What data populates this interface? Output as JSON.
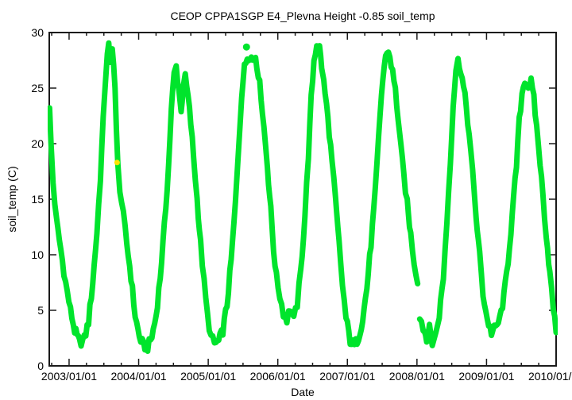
{
  "chart_data": {
    "type": "line",
    "plot_style": "dense point band (gnuplot-style time series)",
    "title": "CEOP CPPA1SGP E4_Plevna Height -0.85 soil_temp",
    "xlabel": "Date",
    "ylabel": "soil_temp (C)",
    "xlim": [
      2002.715,
      2010.0
    ],
    "ylim": [
      0,
      30
    ],
    "grid": false,
    "legend": "none",
    "colors": {
      "background": "#ffffff",
      "axis": "#1a1a1a",
      "text": "#000000"
    },
    "x_ticks": [
      {
        "v": 2003,
        "label": "2003/01/01"
      },
      {
        "v": 2004,
        "label": "2004/01/01"
      },
      {
        "v": 2005,
        "label": "2005/01/01"
      },
      {
        "v": 2006,
        "label": "2006/01/01"
      },
      {
        "v": 2007,
        "label": "2007/01/01"
      },
      {
        "v": 2008,
        "label": "2008/01/01"
      },
      {
        "v": 2009,
        "label": "2009/01/01"
      },
      {
        "v": 2010,
        "label": "2010/01/01"
      }
    ],
    "x_minor_tick_interval_years": 0.25,
    "y_ticks": [
      {
        "v": 0,
        "label": "0"
      },
      {
        "v": 5,
        "label": "5"
      },
      {
        "v": 10,
        "label": "10"
      },
      {
        "v": 15,
        "label": "15"
      },
      {
        "v": 20,
        "label": "20"
      },
      {
        "v": 25,
        "label": "25"
      },
      {
        "v": 30,
        "label": "30"
      }
    ],
    "series": [
      {
        "name": "soil_temp",
        "color": "#00e42c",
        "band_halfwidth_c": 0.45,
        "segments": [
          [
            [
              2002.72,
              23.0
            ],
            [
              2002.74,
              20.0
            ],
            [
              2002.77,
              16.5
            ],
            [
              2002.82,
              13.0
            ],
            [
              2002.88,
              10.5
            ],
            [
              2002.95,
              7.5
            ],
            [
              2003.02,
              5.0
            ],
            [
              2003.08,
              3.2
            ],
            [
              2003.15,
              2.1
            ],
            [
              2003.22,
              2.4
            ],
            [
              2003.28,
              4.0
            ],
            [
              2003.34,
              7.5
            ],
            [
              2003.4,
              12.0
            ],
            [
              2003.45,
              17.0
            ],
            [
              2003.49,
              22.0
            ],
            [
              2003.52,
              25.5
            ],
            [
              2003.55,
              28.3
            ],
            [
              2003.57,
              28.8
            ],
            [
              2003.59,
              27.0
            ],
            [
              2003.62,
              28.4
            ],
            [
              2003.64,
              27.5
            ],
            [
              2003.66,
              25.0
            ],
            [
              2003.68,
              21.0
            ],
            [
              2003.7,
              18.0
            ],
            [
              2003.73,
              16.0
            ],
            [
              2003.78,
              13.5
            ],
            [
              2003.83,
              11.0
            ],
            [
              2003.89,
              8.0
            ],
            [
              2003.95,
              4.5
            ],
            [
              2004.01,
              2.6
            ],
            [
              2004.07,
              1.8
            ],
            [
              2004.13,
              1.7
            ],
            [
              2004.19,
              2.6
            ],
            [
              2004.25,
              4.5
            ],
            [
              2004.31,
              8.0
            ],
            [
              2004.37,
              12.5
            ],
            [
              2004.43,
              18.0
            ],
            [
              2004.47,
              23.0
            ],
            [
              2004.51,
              26.3
            ],
            [
              2004.54,
              26.9
            ],
            [
              2004.58,
              24.8
            ],
            [
              2004.61,
              22.8
            ],
            [
              2004.64,
              25.3
            ],
            [
              2004.67,
              25.9
            ],
            [
              2004.71,
              24.2
            ],
            [
              2004.75,
              21.8
            ],
            [
              2004.79,
              18.8
            ],
            [
              2004.84,
              15.0
            ],
            [
              2004.89,
              11.0
            ],
            [
              2004.94,
              7.5
            ],
            [
              2004.99,
              4.5
            ],
            [
              2005.04,
              2.6
            ],
            [
              2005.09,
              2.0
            ],
            [
              2005.15,
              2.2
            ],
            [
              2005.21,
              3.2
            ],
            [
              2005.27,
              5.5
            ],
            [
              2005.33,
              9.5
            ],
            [
              2005.39,
              14.5
            ],
            [
              2005.44,
              20.0
            ],
            [
              2005.48,
              24.5
            ],
            [
              2005.52,
              26.8
            ],
            [
              2005.56,
              27.8
            ],
            [
              2005.6,
              28.0
            ],
            [
              2005.64,
              27.5
            ],
            [
              2005.68,
              27.9
            ],
            [
              2005.72,
              26.3
            ],
            [
              2005.76,
              24.3
            ],
            [
              2005.8,
              21.5
            ],
            [
              2005.85,
              18.0
            ],
            [
              2005.9,
              14.0
            ],
            [
              2005.94,
              10.5
            ],
            [
              2005.98,
              8.0
            ],
            [
              2006.03,
              6.3
            ],
            [
              2006.08,
              4.8
            ],
            [
              2006.13,
              4.2
            ],
            [
              2006.18,
              5.2
            ],
            [
              2006.23,
              4.1
            ],
            [
              2006.28,
              5.6
            ],
            [
              2006.33,
              8.5
            ],
            [
              2006.39,
              13.5
            ],
            [
              2006.44,
              19.0
            ],
            [
              2006.48,
              24.0
            ],
            [
              2006.52,
              27.5
            ],
            [
              2006.56,
              29.0
            ],
            [
              2006.6,
              28.6
            ],
            [
              2006.63,
              27.0
            ],
            [
              2006.66,
              25.5
            ],
            [
              2006.7,
              23.5
            ],
            [
              2006.74,
              21.0
            ],
            [
              2006.78,
              18.3
            ],
            [
              2006.83,
              14.8
            ],
            [
              2006.88,
              11.0
            ],
            [
              2006.93,
              7.3
            ],
            [
              2006.98,
              4.3
            ],
            [
              2007.04,
              2.3
            ],
            [
              2007.1,
              1.8
            ],
            [
              2007.16,
              2.6
            ],
            [
              2007.22,
              4.2
            ],
            [
              2007.28,
              7.0
            ],
            [
              2007.34,
              11.0
            ],
            [
              2007.4,
              15.5
            ],
            [
              2007.45,
              20.5
            ],
            [
              2007.49,
              24.5
            ],
            [
              2007.53,
              27.0
            ],
            [
              2007.57,
              28.4
            ],
            [
              2007.61,
              27.9
            ],
            [
              2007.65,
              26.4
            ],
            [
              2007.69,
              24.8
            ],
            [
              2007.73,
              22.3
            ],
            [
              2007.77,
              19.5
            ],
            [
              2007.81,
              17.2
            ],
            [
              2007.86,
              14.6
            ],
            [
              2007.91,
              11.8
            ],
            [
              2007.96,
              9.4
            ],
            [
              2008.01,
              7.4
            ]
          ],
          [
            [
              2008.04,
              4.6
            ],
            [
              2008.09,
              3.4
            ],
            [
              2008.14,
              2.6
            ],
            [
              2008.18,
              3.3
            ],
            [
              2008.22,
              2.1
            ],
            [
              2008.27,
              2.8
            ],
            [
              2008.32,
              4.6
            ],
            [
              2008.38,
              8.0
            ],
            [
              2008.43,
              13.0
            ],
            [
              2008.48,
              18.5
            ],
            [
              2008.52,
              23.5
            ],
            [
              2008.56,
              26.6
            ],
            [
              2008.59,
              27.4
            ],
            [
              2008.63,
              26.7
            ],
            [
              2008.67,
              25.0
            ],
            [
              2008.71,
              23.3
            ],
            [
              2008.75,
              20.8
            ],
            [
              2008.8,
              17.3
            ],
            [
              2008.85,
              13.5
            ],
            [
              2008.9,
              10.0
            ],
            [
              2008.95,
              6.5
            ],
            [
              2009.01,
              4.2
            ],
            [
              2009.07,
              3.0
            ],
            [
              2009.13,
              3.4
            ],
            [
              2009.19,
              4.2
            ],
            [
              2009.25,
              6.2
            ],
            [
              2009.31,
              9.5
            ],
            [
              2009.37,
              13.5
            ],
            [
              2009.43,
              18.0
            ],
            [
              2009.47,
              22.0
            ],
            [
              2009.51,
              24.5
            ],
            [
              2009.55,
              25.8
            ],
            [
              2009.6,
              25.1
            ],
            [
              2009.64,
              25.5
            ],
            [
              2009.68,
              24.0
            ],
            [
              2009.72,
              21.5
            ],
            [
              2009.77,
              18.3
            ],
            [
              2009.81,
              15.3
            ],
            [
              2009.86,
              11.8
            ],
            [
              2009.91,
              8.3
            ],
            [
              2009.96,
              5.2
            ],
            [
              2010.0,
              3.0
            ]
          ]
        ]
      }
    ],
    "outliers": [
      {
        "name": "yellow-flagged-point",
        "x": 2003.69,
        "y": 18.3,
        "color": "#ffe400",
        "r": 3.5
      },
      {
        "name": "detached-green-point",
        "x": 2005.55,
        "y": 28.7,
        "color": "#00e42c",
        "r": 4.5
      }
    ]
  }
}
